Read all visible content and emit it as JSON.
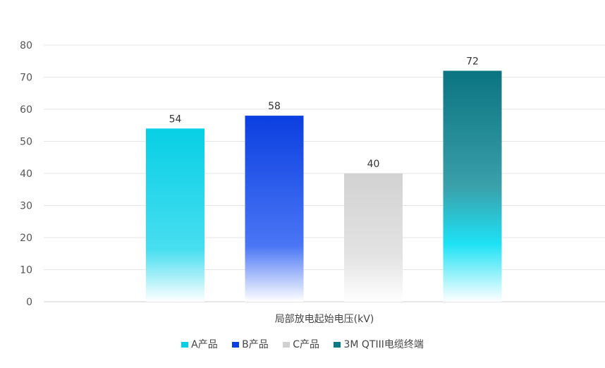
{
  "chart_data": {
    "type": "bar",
    "categories": [
      "局部放电起始电压(kV)"
    ],
    "series": [
      {
        "name": "A产品",
        "values": [
          54
        ],
        "color": "#07cfe5"
      },
      {
        "name": "B产品",
        "values": [
          58
        ],
        "color": "#0b3fe0"
      },
      {
        "name": "C产品",
        "values": [
          40
        ],
        "color": "#d0d0d0"
      },
      {
        "name": "3M QTIII电缆终端",
        "values": [
          72
        ],
        "color": "#0b7a86"
      }
    ],
    "xlabel": "局部放电起始电压(kV)",
    "ylabel": "",
    "ylim": [
      0,
      80
    ],
    "yticks": [
      0,
      10,
      20,
      30,
      40,
      50,
      60,
      70,
      80
    ],
    "grid": true,
    "legend": "bottom"
  }
}
